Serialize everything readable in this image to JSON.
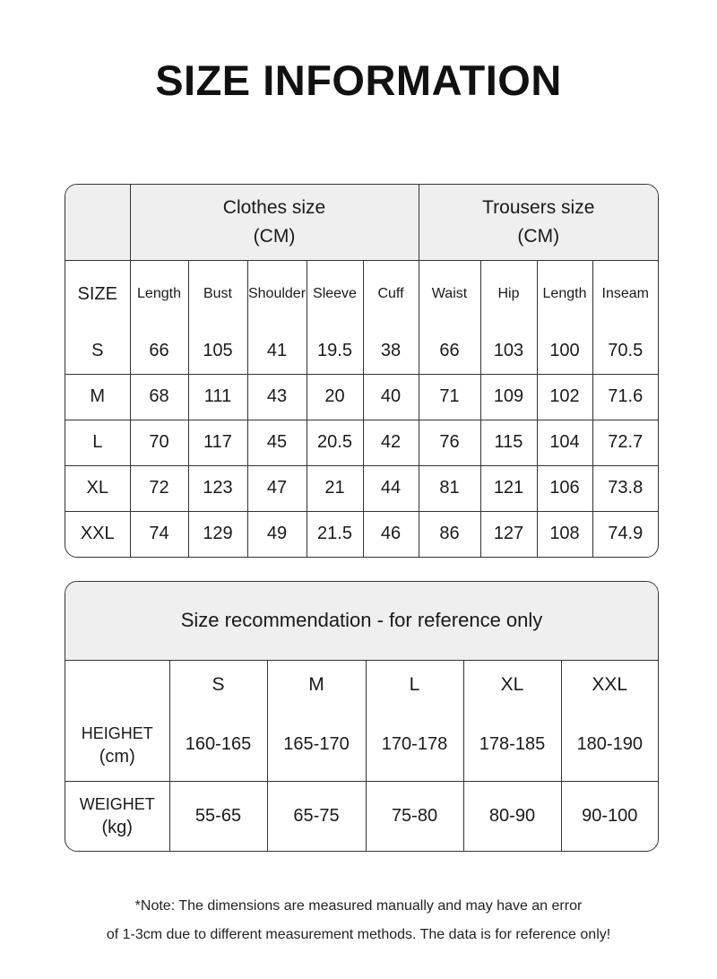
{
  "title": "SIZE INFORMATION",
  "size_table": {
    "group_headers": [
      {
        "label": "Clothes size",
        "unit": "(CM)"
      },
      {
        "label": "Trousers size",
        "unit": "(CM)"
      }
    ],
    "columns": [
      "SIZE",
      "Length",
      "Bust",
      "Shoulder",
      "Sleeve",
      "Cuff",
      "Waist",
      "Hip",
      "Length",
      "Inseam"
    ],
    "rows": [
      [
        "S",
        "66",
        "105",
        "41",
        "19.5",
        "38",
        "66",
        "103",
        "100",
        "70.5"
      ],
      [
        "M",
        "68",
        "111",
        "43",
        "20",
        "40",
        "71",
        "109",
        "102",
        "71.6"
      ],
      [
        "L",
        "70",
        "117",
        "45",
        "20.5",
        "42",
        "76",
        "115",
        "104",
        "72.7"
      ],
      [
        "XL",
        "72",
        "123",
        "47",
        "21",
        "44",
        "81",
        "121",
        "106",
        "73.8"
      ],
      [
        "XXL",
        "74",
        "129",
        "49",
        "21.5",
        "46",
        "86",
        "127",
        "108",
        "74.9"
      ]
    ]
  },
  "recommendation_table": {
    "title": "Size recommendation - for reference only",
    "sizes": [
      "S",
      "M",
      "L",
      "XL",
      "XXL"
    ],
    "rows": [
      {
        "label": "HEIGHET",
        "unit": "(cm)",
        "values": [
          "160-165",
          "165-170",
          "170-178",
          "178-185",
          "180-190"
        ]
      },
      {
        "label": "WEIGHET",
        "unit": "(kg)",
        "values": [
          "55-65",
          "65-75",
          "75-80",
          "80-90",
          "90-100"
        ]
      }
    ]
  },
  "note": {
    "line1": "*Note: The dimensions are measured manually and may have an error",
    "line2": "of 1-3cm due to different measurement methods. The data is for reference only!"
  },
  "colors": {
    "header_bg": "#efefef",
    "border": "#333333",
    "text": "#1a1a1a"
  }
}
